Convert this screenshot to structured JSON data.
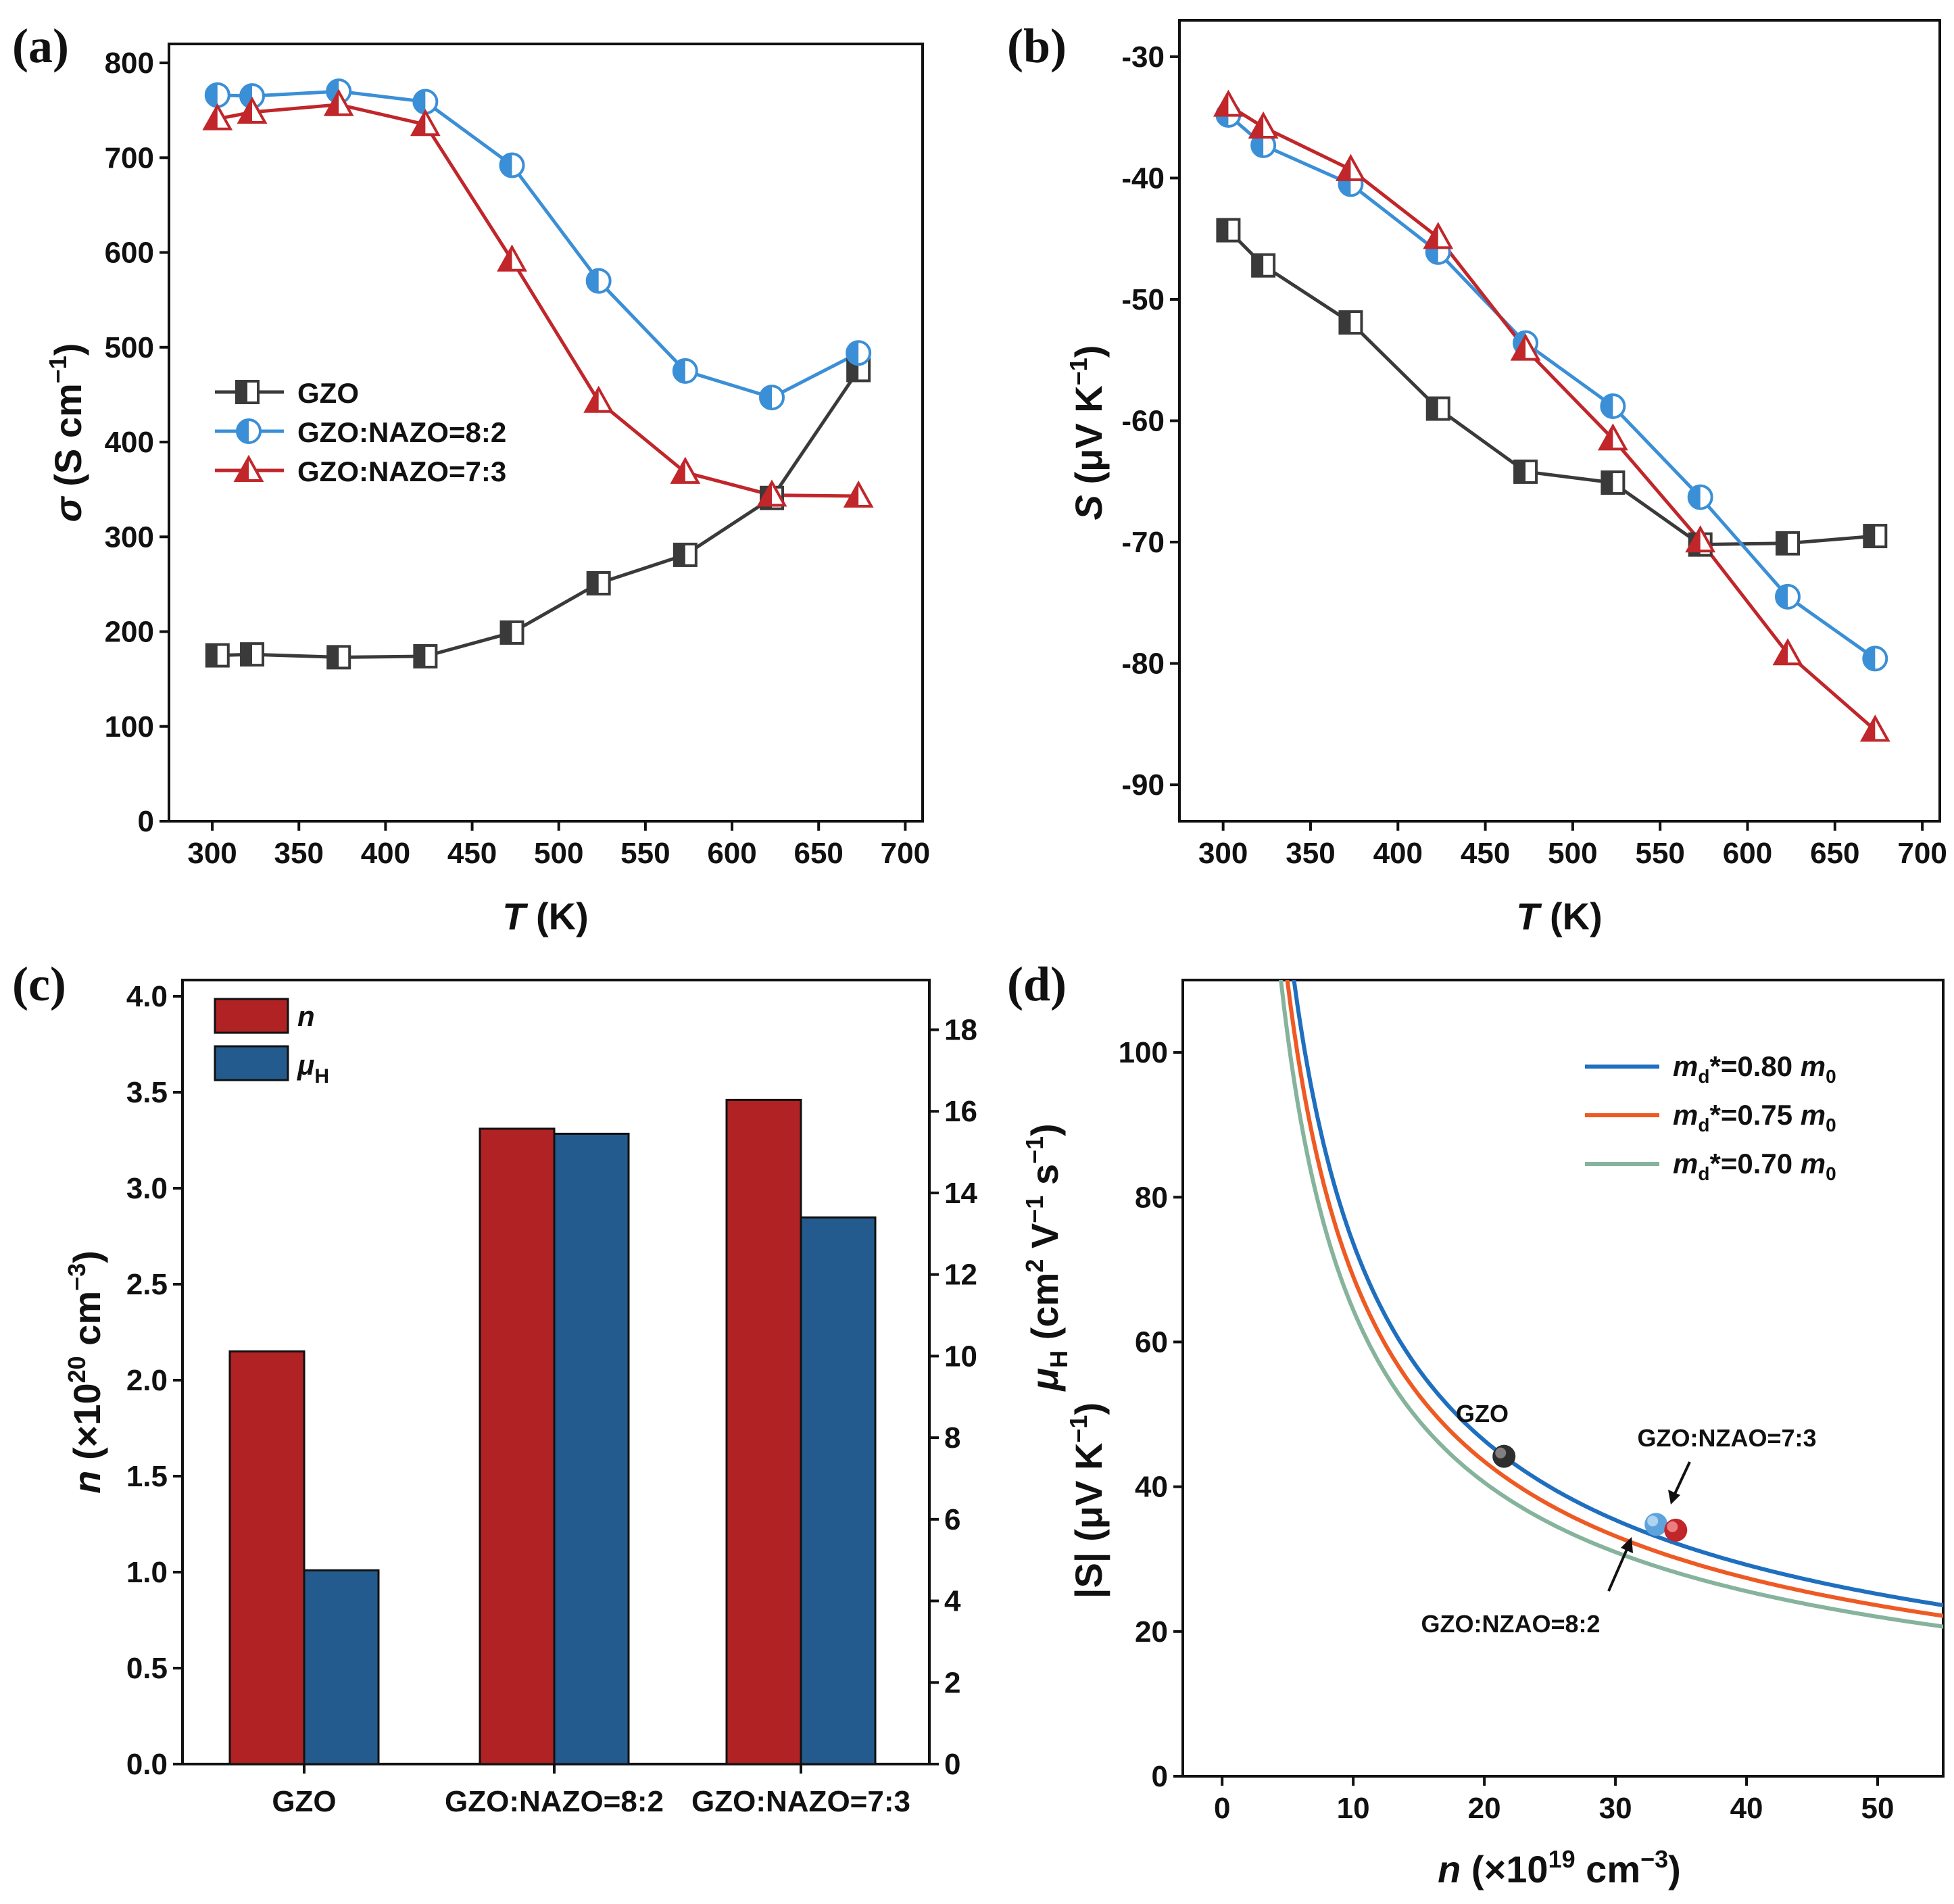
{
  "colors": {
    "gzo": "#3a3a3a",
    "nazo82": "#3b8fd6",
    "nazo73": "#c0262a",
    "bar_n": "#b02224",
    "bar_mu": "#245b8e",
    "m080": "#1f6fbf",
    "m075": "#ee5a24",
    "m070": "#86b39c"
  },
  "chart_data": [
    {
      "panel": "(a)",
      "type": "line",
      "xlabel_italic": "T",
      "xlabel_rest": " (K)",
      "ylabel_italic": "σ",
      "ylabel_rest": " (S cm",
      "ylabel_sup": "−1",
      "ylabel_end": ")",
      "xlim": [
        275,
        710
      ],
      "ylim": [
        0,
        820
      ],
      "xticks": [
        "300",
        "350",
        "400",
        "450",
        "500",
        "550",
        "600",
        "650",
        "700"
      ],
      "yticks": [
        "0",
        "100",
        "200",
        "300",
        "400",
        "500",
        "600",
        "700",
        "800"
      ],
      "x": [
        303,
        323,
        373,
        423,
        473,
        523,
        573,
        623,
        673
      ],
      "series": [
        {
          "name": "GZO",
          "marker": "square",
          "values": [
            175,
            176,
            173,
            174,
            199,
            251,
            281,
            341,
            476
          ]
        },
        {
          "name": "GZO:NAZO=8:2",
          "marker": "circle",
          "values": [
            766,
            765,
            770,
            759,
            692,
            570,
            475,
            447,
            494
          ]
        },
        {
          "name": "GZO:NAZO=7:3",
          "marker": "triangle",
          "values": [
            741,
            748,
            756,
            735,
            592,
            443,
            368,
            344,
            343
          ]
        }
      ]
    },
    {
      "panel": "(b)",
      "type": "line",
      "xlabel_italic": "T",
      "xlabel_rest": " (K)",
      "ylabel_italic": "S",
      "ylabel_rest": " (μV K",
      "ylabel_sup": "−1",
      "ylabel_end": ")",
      "xlim": [
        275,
        710
      ],
      "ylim": [
        -93,
        -27
      ],
      "xticks": [
        "300",
        "350",
        "400",
        "450",
        "500",
        "550",
        "600",
        "650",
        "700"
      ],
      "yticks": [
        "-30",
        "-40",
        "-50",
        "-60",
        "-70",
        "-80",
        "-90"
      ],
      "x": [
        303,
        323,
        373,
        423,
        473,
        523,
        573,
        623,
        673
      ],
      "series": [
        {
          "name": "GZO",
          "marker": "square",
          "values": [
            -44.3,
            -47.2,
            -51.9,
            -59.0,
            -64.2,
            -65.1,
            -70.2,
            -70.1,
            -69.5
          ]
        },
        {
          "name": "GZO:NAZO=8:2",
          "marker": "circle",
          "values": [
            -34.8,
            -37.3,
            -40.5,
            -46.1,
            -53.6,
            -58.8,
            -66.3,
            -74.5,
            -79.6
          ]
        },
        {
          "name": "GZO:NAZO=7:3",
          "marker": "triangle",
          "values": [
            -34.0,
            -35.8,
            -39.3,
            -44.9,
            -54.1,
            -61.5,
            -69.9,
            -79.2,
            -85.5
          ]
        }
      ]
    },
    {
      "panel": "(c)",
      "type": "bar",
      "categories": [
        "GZO",
        "GZO:NAZO=8:2",
        "GZO:NAZO=7:3"
      ],
      "ylabel_italic": "n",
      "ylabel_rest": " (×10",
      "ylabel_sup": "20",
      "ylabel_end": " cm",
      "ylabel_sup2": "−3",
      "ylabel_close": ")",
      "y2label_italic": "μ",
      "y2label_sub": "H",
      "y2label_rest": " (cm",
      "y2label_sup": "2",
      "y2label_mid": " V",
      "y2label_sup2": "−1",
      "y2label_end": " s",
      "y2label_sup3": "−1",
      "y2label_close": ")",
      "ylim": [
        0,
        4.0
      ],
      "y2lim": [
        0,
        18.82
      ],
      "yticks": [
        "0.0",
        "0.5",
        "1.0",
        "1.5",
        "2.0",
        "2.5",
        "3.0",
        "3.5",
        "4.0"
      ],
      "y2ticks": [
        "0",
        "2",
        "4",
        "6",
        "8",
        "10",
        "12",
        "14",
        "16",
        "18"
      ],
      "series": [
        {
          "name": "n",
          "axis": "left",
          "values": [
            2.15,
            3.31,
            3.46
          ]
        },
        {
          "name": "μH",
          "axis": "right",
          "values": [
            4.75,
            15.45,
            13.4
          ]
        }
      ],
      "legend": [
        {
          "label": "n"
        },
        {
          "label": "μ",
          "sub": "H"
        }
      ]
    },
    {
      "panel": "(d)",
      "type": "line",
      "xlabel_italic": "n",
      "xlabel_rest": " (×10",
      "xlabel_sup": "19",
      "xlabel_end": " cm",
      "xlabel_sup2": "−3",
      "xlabel_close": ")",
      "ylabel": "|S| (μV K",
      "ylabel_sup": "−1",
      "ylabel_end": ")",
      "xlim": [
        -3,
        55
      ],
      "ylim": [
        0,
        110
      ],
      "xticks": [
        "0",
        "10",
        "20",
        "30",
        "40",
        "50"
      ],
      "yticks": [
        "0",
        "20",
        "40",
        "60",
        "80",
        "100"
      ],
      "series": [
        {
          "name": "m_d*=0.80 m_0",
          "label_pre": "m",
          "label_sub": "d",
          "label_mid": "*=0.80 ",
          "label_m": "m",
          "label_sub2": "0",
          "mass": 0.8
        },
        {
          "name": "m_d*=0.75 m_0",
          "label_pre": "m",
          "label_sub": "d",
          "label_mid": "*=0.75 ",
          "label_m": "m",
          "label_sub2": "0",
          "mass": 0.75
        },
        {
          "name": "m_d*=0.70 m_0",
          "label_pre": "m",
          "label_sub": "d",
          "label_mid": "*=0.70 ",
          "label_m": "m",
          "label_sub2": "0",
          "mass": 0.7
        }
      ],
      "curve_model": "S = 44.2 * (m/0.80) * (21.5/n)^(2/3)",
      "points": [
        {
          "name": "GZO",
          "n": 21.5,
          "S": 44.2
        },
        {
          "name": "GZO:NZAO=8:2",
          "n": 33.1,
          "S": 34.8
        },
        {
          "name": "GZO:NZAO=7:3",
          "n": 34.6,
          "S": 34.0
        }
      ],
      "annotations": [
        "GZO",
        "GZO:NZAO=7:3",
        "GZO:NZAO=8:2"
      ]
    }
  ]
}
